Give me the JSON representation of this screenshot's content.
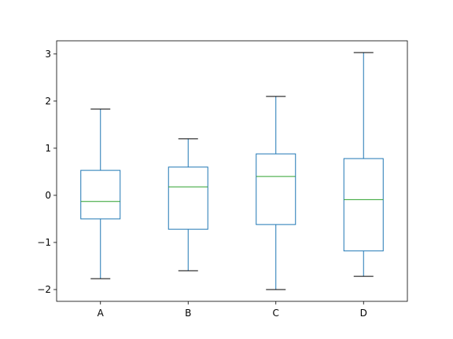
{
  "chart_data": {
    "type": "box",
    "categories": [
      "A",
      "B",
      "C",
      "D"
    ],
    "boxes": [
      {
        "label": "A",
        "whisker_low": -1.77,
        "q1": -0.5,
        "median": -0.13,
        "q3": 0.53,
        "whisker_high": 1.83
      },
      {
        "label": "B",
        "whisker_low": -1.6,
        "q1": -0.72,
        "median": 0.18,
        "q3": 0.6,
        "whisker_high": 1.2
      },
      {
        "label": "C",
        "whisker_low": -2.0,
        "q1": -0.62,
        "median": 0.4,
        "q3": 0.88,
        "whisker_high": 2.1
      },
      {
        "label": "D",
        "whisker_low": -1.72,
        "q1": -1.18,
        "median": -0.09,
        "q3": 0.78,
        "whisker_high": 3.03
      }
    ],
    "ylim": [
      -2.25,
      3.28
    ],
    "yticks": [
      -2,
      -1,
      0,
      1,
      2,
      3
    ],
    "ytick_labels": [
      "−2",
      "−1",
      "0",
      "1",
      "2",
      "3"
    ],
    "grid": false,
    "colors": {
      "box": "#1f77b4",
      "median": "#2ca02c",
      "caps": "#000000"
    }
  }
}
